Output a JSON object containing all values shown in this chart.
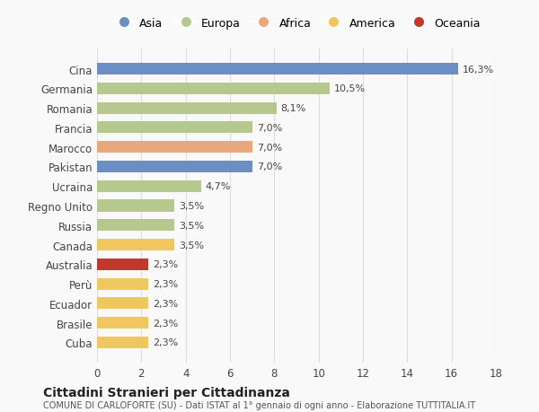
{
  "categories": [
    "Cuba",
    "Brasile",
    "Ecuador",
    "Perù",
    "Australia",
    "Canada",
    "Russia",
    "Regno Unito",
    "Ucraina",
    "Pakistan",
    "Marocco",
    "Francia",
    "Romania",
    "Germania",
    "Cina"
  ],
  "values": [
    2.3,
    2.3,
    2.3,
    2.3,
    2.3,
    3.5,
    3.5,
    3.5,
    4.7,
    7.0,
    7.0,
    7.0,
    8.1,
    10.5,
    16.3
  ],
  "labels": [
    "2,3%",
    "2,3%",
    "2,3%",
    "2,3%",
    "2,3%",
    "3,5%",
    "3,5%",
    "3,5%",
    "4,7%",
    "7,0%",
    "7,0%",
    "7,0%",
    "8,1%",
    "10,5%",
    "16,3%"
  ],
  "colors": [
    "#f0c75e",
    "#f0c75e",
    "#f0c75e",
    "#f0c75e",
    "#c0392b",
    "#f0c75e",
    "#b5c98e",
    "#b5c98e",
    "#b5c98e",
    "#6b8fc4",
    "#e8a87c",
    "#b5c98e",
    "#b5c98e",
    "#b5c98e",
    "#6b8fc4"
  ],
  "legend": [
    {
      "label": "Asia",
      "color": "#6b8fc4"
    },
    {
      "label": "Europa",
      "color": "#b5c98e"
    },
    {
      "label": "Africa",
      "color": "#e8a87c"
    },
    {
      "label": "America",
      "color": "#f0c75e"
    },
    {
      "label": "Oceania",
      "color": "#c0392b"
    }
  ],
  "xlim": [
    0,
    18
  ],
  "xticks": [
    0,
    2,
    4,
    6,
    8,
    10,
    12,
    14,
    16,
    18
  ],
  "title": "Cittadini Stranieri per Cittadinanza",
  "subtitle": "COMUNE DI CARLOFORTE (SU) - Dati ISTAT al 1° gennaio di ogni anno - Elaborazione TUTTITALIA.IT",
  "background_color": "#f9f9f9",
  "grid_color": "#dddddd"
}
